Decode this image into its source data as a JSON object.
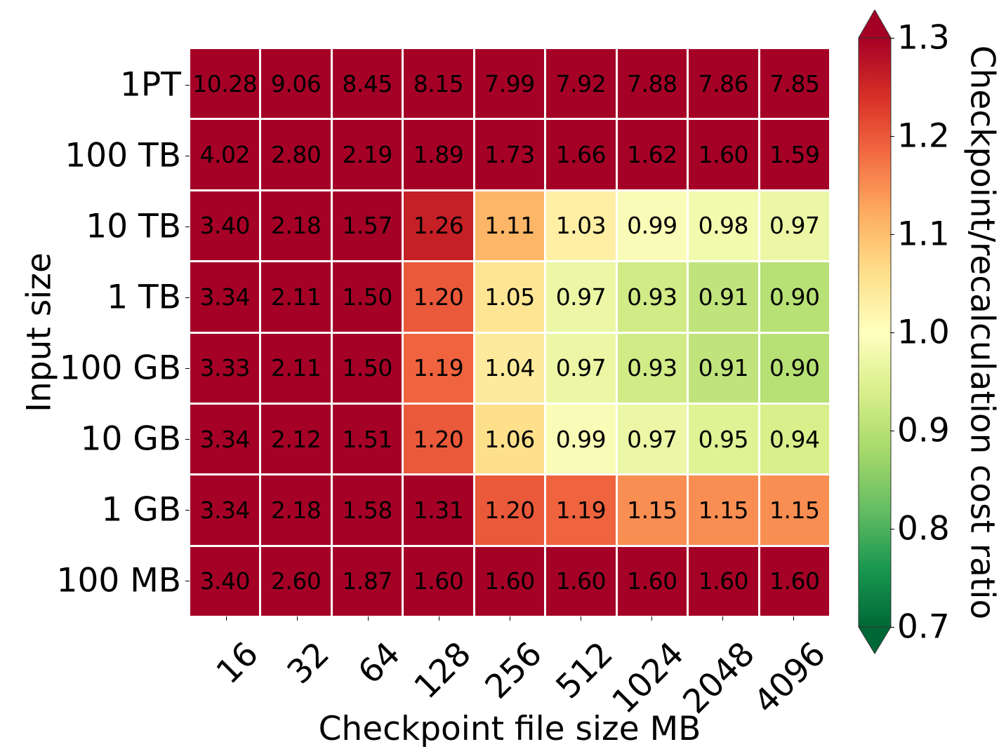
{
  "chart_data": {
    "type": "heatmap",
    "title": "",
    "xlabel": "Checkpoint file size MB",
    "ylabel": "Input size",
    "x_categories": [
      "16",
      "32",
      "64",
      "128",
      "256",
      "512",
      "1024",
      "2048",
      "4096"
    ],
    "y_categories": [
      "1PT",
      "100 TB",
      "10 TB",
      "1 TB",
      "100 GB",
      "10 GB",
      "1 GB",
      "100 MB"
    ],
    "values": [
      [
        10.28,
        9.06,
        8.45,
        8.15,
        7.99,
        7.92,
        7.88,
        7.86,
        7.85
      ],
      [
        4.02,
        2.8,
        2.19,
        1.89,
        1.73,
        1.66,
        1.62,
        1.6,
        1.59
      ],
      [
        3.4,
        2.18,
        1.57,
        1.26,
        1.11,
        1.03,
        0.99,
        0.98,
        0.97
      ],
      [
        3.34,
        2.11,
        1.5,
        1.2,
        1.05,
        0.97,
        0.93,
        0.91,
        0.9
      ],
      [
        3.33,
        2.11,
        1.5,
        1.19,
        1.04,
        0.97,
        0.93,
        0.91,
        0.9
      ],
      [
        3.34,
        2.12,
        1.51,
        1.2,
        1.06,
        0.99,
        0.97,
        0.95,
        0.94
      ],
      [
        3.34,
        2.18,
        1.58,
        1.31,
        1.2,
        1.19,
        1.15,
        1.15,
        1.15
      ],
      [
        3.4,
        2.6,
        1.87,
        1.6,
        1.6,
        1.6,
        1.6,
        1.6,
        1.6
      ]
    ],
    "annotations_format": "0.00",
    "colormap": "RdYlGn_r",
    "colorbar": {
      "label": "Checkpoint/recalculation cost ratio",
      "vmin": 0.7,
      "vmax": 1.3,
      "ticks": [
        "1.3",
        "1.2",
        "1.1",
        "1.0",
        "0.9",
        "0.8",
        "0.7"
      ],
      "extend": "both"
    },
    "grid": false,
    "legend": null
  },
  "colors": {
    "max_red": "#a50026",
    "min_green": "#006837",
    "neutral_yellow": "#ffffbf",
    "cell_border": "#ffffff"
  }
}
